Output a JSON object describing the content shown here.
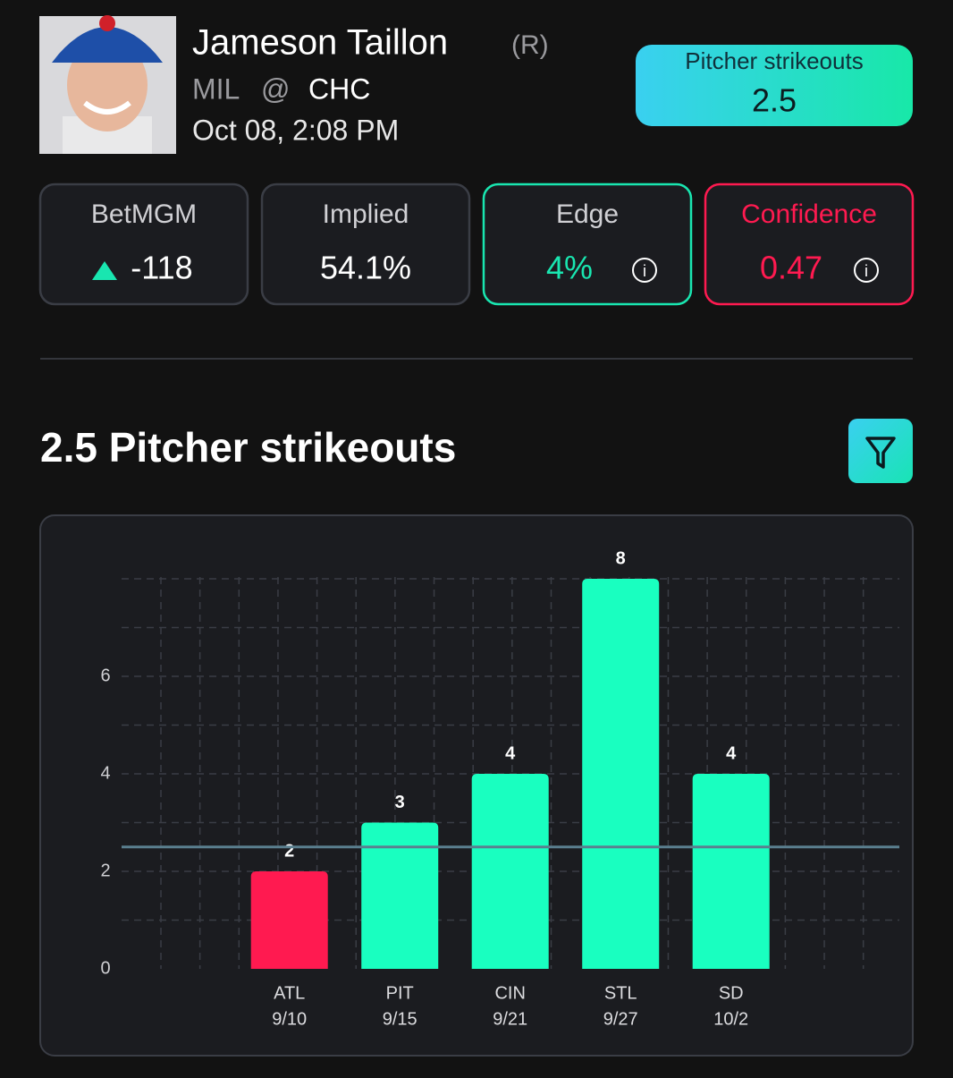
{
  "player": {
    "name": "Jameson Taillon",
    "hand": "(R)",
    "matchup": {
      "away": "MIL",
      "separator": "@",
      "home": "CHC"
    },
    "game_time": "Oct 08, 2:08 PM"
  },
  "prop": {
    "label": "Pitcher strikeouts",
    "line": 2.5
  },
  "cards": [
    {
      "label": "BetMGM",
      "value": -118
    },
    {
      "label": "Implied",
      "value": "54.1%"
    },
    {
      "label": "Edge",
      "value": "4%"
    },
    {
      "label": "Confidence",
      "value": 0.47
    }
  ],
  "section_title": "2.5 Pitcher strikeouts",
  "chart_data": {
    "type": "bar",
    "categories": [
      "ATL",
      "PIT",
      "CIN",
      "STL",
      "SD"
    ],
    "game_dates": [
      "9/10",
      "9/15",
      "9/21",
      "9/27",
      "10/2"
    ],
    "values": [
      2,
      3,
      4,
      8,
      4
    ],
    "colors": [
      "#ff1a50",
      "#19ffc0",
      "#19ffc0",
      "#19ffc0",
      "#19ffc0"
    ],
    "ylim": [
      0,
      8
    ],
    "yticks": [
      0,
      2,
      4,
      6
    ],
    "ygrid": [
      1,
      2,
      3,
      4,
      5,
      6,
      7,
      8
    ],
    "grid": true
  }
}
